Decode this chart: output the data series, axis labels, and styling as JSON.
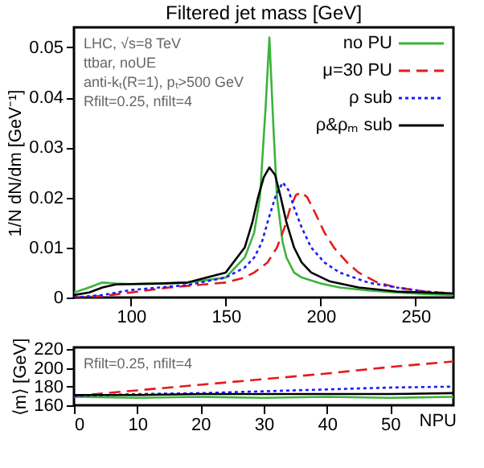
{
  "chart_data": [
    {
      "type": "line",
      "title": "Filtered jet mass [GeV]",
      "ylabel": "1/N dN/dm [GeV⁻¹]",
      "annotations": [
        "LHC, √s=8 TeV",
        "ttbar, noUE",
        "anti-kₜ(R=1), pₜ>500 GeV",
        "Rfilt=0.25, nfilt=4"
      ],
      "xlim": [
        70,
        270
      ],
      "xticks": [
        100,
        150,
        200,
        250
      ],
      "ylim": [
        0,
        0.054
      ],
      "yticks": [
        0,
        0.01,
        0.02,
        0.03,
        0.04,
        0.05
      ],
      "legend": "top right",
      "grid": false,
      "series": [
        {
          "name": "no PU",
          "color": "#3cb33c",
          "line_style": "solid",
          "x": [
            70,
            78,
            85,
            92,
            100,
            115,
            130,
            150,
            160,
            165,
            168,
            171,
            173,
            175,
            177,
            180,
            182,
            186,
            190,
            200,
            210,
            225,
            240,
            255,
            270
          ],
          "values": [
            0.001,
            0.002,
            0.003,
            0.0028,
            0.0027,
            0.0028,
            0.003,
            0.004,
            0.008,
            0.013,
            0.02,
            0.038,
            0.052,
            0.035,
            0.02,
            0.011,
            0.008,
            0.005,
            0.004,
            0.0028,
            0.002,
            0.0014,
            0.001,
            0.0007,
            0.0005
          ]
        },
        {
          "name": "μ=30 PU",
          "color": "#e41a1c",
          "line_style": "dashed",
          "x": [
            70,
            85,
            100,
            120,
            135,
            150,
            160,
            165,
            172,
            177,
            181,
            184,
            187,
            190,
            193,
            197,
            202,
            207,
            214,
            220,
            230,
            240,
            255,
            270
          ],
          "values": [
            0,
            0.0003,
            0.001,
            0.002,
            0.0025,
            0.003,
            0.004,
            0.005,
            0.007,
            0.01,
            0.014,
            0.018,
            0.0205,
            0.021,
            0.02,
            0.017,
            0.013,
            0.01,
            0.007,
            0.005,
            0.003,
            0.002,
            0.0012,
            0.0008
          ]
        },
        {
          "name": "ρ sub",
          "color": "#1a1aff",
          "line_style": "dotted",
          "x": [
            70,
            85,
            100,
            115,
            130,
            150,
            160,
            165,
            169,
            172,
            176,
            180,
            183,
            186,
            190,
            195,
            202,
            210,
            225,
            240,
            255,
            270
          ],
          "values": [
            0,
            0.0005,
            0.0015,
            0.002,
            0.0025,
            0.004,
            0.006,
            0.008,
            0.011,
            0.015,
            0.02,
            0.023,
            0.0215,
            0.018,
            0.014,
            0.01,
            0.007,
            0.005,
            0.003,
            0.002,
            0.0012,
            0.0008
          ]
        },
        {
          "name": "ρ&ρₘ sub",
          "color": "#000000",
          "line_style": "solid",
          "x": [
            70,
            78,
            85,
            92,
            100,
            115,
            130,
            150,
            160,
            164,
            167,
            170,
            173,
            176,
            179,
            182,
            186,
            190,
            195,
            205,
            220,
            240,
            255,
            270
          ],
          "values": [
            0.0005,
            0.001,
            0.002,
            0.0026,
            0.0027,
            0.0028,
            0.003,
            0.005,
            0.01,
            0.015,
            0.02,
            0.024,
            0.026,
            0.0245,
            0.02,
            0.015,
            0.01,
            0.007,
            0.005,
            0.0032,
            0.002,
            0.0012,
            0.001,
            0.0008
          ]
        }
      ]
    },
    {
      "type": "line",
      "ylabel": "⟨m⟩ [GeV]",
      "xlabel": "NPU",
      "annotations": [
        "Rfilt=0.25, nfilt=4"
      ],
      "xlim": [
        0,
        60
      ],
      "xticks": [
        0,
        10,
        20,
        30,
        40,
        50
      ],
      "ylim": [
        160,
        222
      ],
      "yticks": [
        160,
        180,
        200,
        220
      ],
      "grid": false,
      "series": [
        {
          "color": "#3cb33c",
          "line_style": "solid",
          "x": [
            0,
            10,
            20,
            30,
            40,
            50,
            60
          ],
          "values": [
            169,
            168,
            169,
            168,
            169,
            168,
            169
          ]
        },
        {
          "color": "#e41a1c",
          "line_style": "dashed",
          "x": [
            0,
            10,
            20,
            30,
            40,
            50,
            60
          ],
          "values": [
            170,
            176,
            182,
            188,
            194,
            201,
            207
          ]
        },
        {
          "color": "#1a1aff",
          "line_style": "dotted",
          "x": [
            0,
            10,
            20,
            30,
            40,
            50,
            60
          ],
          "values": [
            170,
            172,
            173,
            175,
            177,
            179,
            180
          ]
        },
        {
          "color": "#000000",
          "line_style": "solid",
          "x": [
            0,
            10,
            20,
            30,
            40,
            50,
            60
          ],
          "values": [
            171,
            171,
            172,
            172,
            172,
            172,
            173
          ]
        }
      ]
    }
  ]
}
